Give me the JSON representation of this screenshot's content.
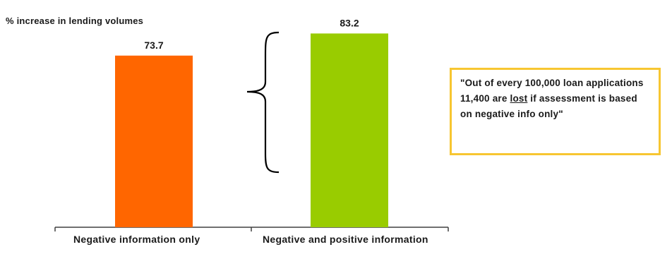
{
  "chart_data": {
    "type": "bar",
    "title": "% increase in lending volumes",
    "categories": [
      "Negative information only",
      "Negative and positive information"
    ],
    "values": [
      73.7,
      83.2
    ],
    "data_labels": [
      "73.7",
      "83.2"
    ],
    "bar_colors": [
      "#ff6600",
      "#99cc00"
    ],
    "xlabel": "",
    "ylabel": "",
    "grid": false,
    "legend": "none"
  },
  "annotation": {
    "prefix": "\"Out of every  100,000 loan applications 11,400 are ",
    "emphasis": "lost",
    "suffix": "  if assessment is based on negative info only\"",
    "border_color": "#f7c631"
  },
  "brace_color": "#000000"
}
